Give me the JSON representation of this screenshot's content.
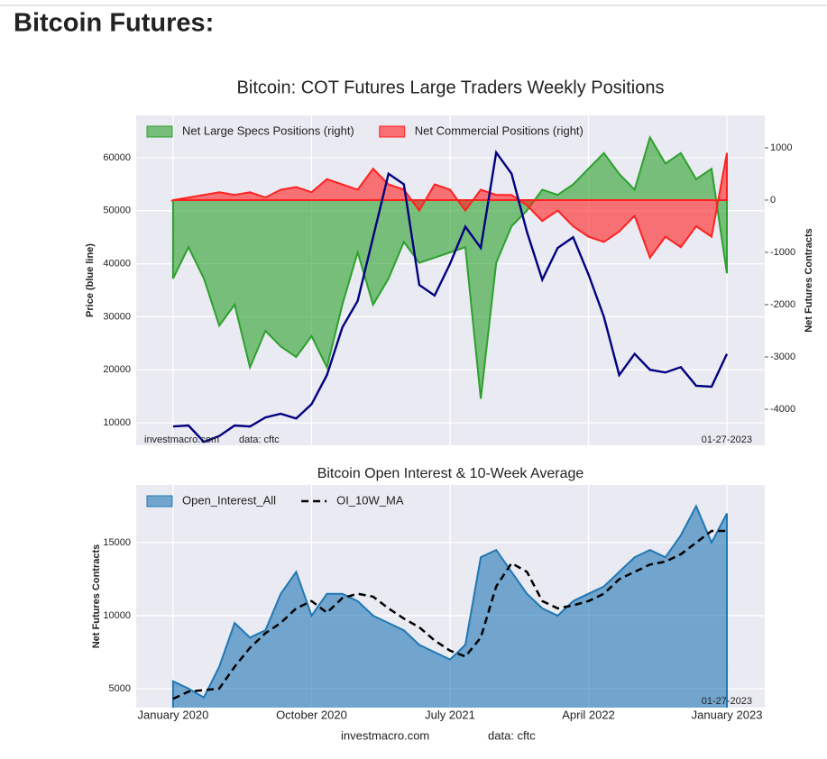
{
  "page_title": "Bitcoin Futures:",
  "chart_data": [
    {
      "type": "line",
      "title": "Bitcoin: COT Futures Large Traders Weekly Positions",
      "ylabel": "Price (blue line)",
      "y2label": "Net Futures Contracts",
      "x": [
        "2020-01",
        "2020-02",
        "2020-03",
        "2020-04",
        "2020-05",
        "2020-06",
        "2020-07",
        "2020-08",
        "2020-09",
        "2020-10",
        "2020-11",
        "2020-12",
        "2021-01",
        "2021-02",
        "2021-03",
        "2021-04",
        "2021-05",
        "2021-06",
        "2021-07",
        "2021-08",
        "2021-09",
        "2021-10",
        "2021-11",
        "2021-12",
        "2022-01",
        "2022-02",
        "2022-03",
        "2022-04",
        "2022-05",
        "2022-06",
        "2022-07",
        "2022-08",
        "2022-09",
        "2022-10",
        "2022-11",
        "2022-12",
        "2023-01"
      ],
      "ylim": [
        5750,
        68000
      ],
      "yticks": [
        10000,
        20000,
        30000,
        40000,
        50000,
        60000
      ],
      "y2lim": [
        -4690,
        1620
      ],
      "y2ticks": [
        1000,
        0,
        -1000,
        -2000,
        -3000,
        -4000
      ],
      "grid": true,
      "legend": "upper left",
      "annotations": [
        "investmacro.com",
        "data: cftc",
        "01-27-2023"
      ],
      "series": [
        {
          "type": "area",
          "name": "Net Large Specs Positions (right)",
          "color": "#2ca02c",
          "axis": "y2",
          "values": [
            -1500,
            -900,
            -1500,
            -2400,
            -2000,
            -3200,
            -2500,
            -2800,
            -3000,
            -2600,
            -3200,
            -2000,
            -1000,
            -2000,
            -1500,
            -800,
            -1200,
            -1100,
            -1000,
            -900,
            -3800,
            -1200,
            -500,
            -200,
            200,
            100,
            300,
            600,
            900,
            500,
            200,
            1200,
            700,
            900,
            400,
            600,
            -1400
          ]
        },
        {
          "type": "area",
          "name": "Net Commercial Positions (right)",
          "color": "#ff2020",
          "axis": "y2",
          "values": [
            0,
            50,
            100,
            150,
            100,
            150,
            50,
            200,
            250,
            150,
            400,
            300,
            200,
            600,
            300,
            200,
            -200,
            300,
            200,
            -200,
            200,
            100,
            100,
            -100,
            -400,
            -200,
            -500,
            -700,
            -800,
            -600,
            -300,
            -1100,
            -700,
            -900,
            -500,
            -700,
            900
          ]
        },
        {
          "type": "line",
          "color": "#000080",
          "values": [
            9300,
            9500,
            6400,
            7500,
            9500,
            9300,
            11000,
            11700,
            10800,
            13500,
            19000,
            28000,
            33000,
            45000,
            57000,
            55000,
            36000,
            34000,
            40000,
            47000,
            43000,
            61000,
            57000,
            46000,
            37000,
            43000,
            45000,
            38000,
            30000,
            19000,
            23000,
            20000,
            19500,
            20500,
            17000,
            16800,
            23000
          ]
        }
      ]
    },
    {
      "type": "area",
      "title": "Bitcoin Open Interest & 10-Week Average",
      "ylabel": "Net Futures Contracts",
      "x": [
        "2020-01",
        "2020-02",
        "2020-03",
        "2020-04",
        "2020-05",
        "2020-06",
        "2020-07",
        "2020-08",
        "2020-09",
        "2020-10",
        "2020-11",
        "2020-12",
        "2021-01",
        "2021-02",
        "2021-03",
        "2021-04",
        "2021-05",
        "2021-06",
        "2021-07",
        "2021-08",
        "2021-09",
        "2021-10",
        "2021-11",
        "2021-12",
        "2022-01",
        "2022-02",
        "2022-03",
        "2022-04",
        "2022-05",
        "2022-06",
        "2022-07",
        "2022-08",
        "2022-09",
        "2022-10",
        "2022-11",
        "2022-12",
        "2023-01"
      ],
      "xticks": [
        {
          "value": "2020-01",
          "label": "January 2020"
        },
        {
          "value": "2020-10",
          "label": "October 2020"
        },
        {
          "value": "2021-07",
          "label": "July 2021"
        },
        {
          "value": "2022-04",
          "label": "April 2022"
        },
        {
          "value": "2023-01",
          "label": "January 2023"
        }
      ],
      "ylim": [
        3700,
        18950
      ],
      "yticks": [
        5000,
        10000,
        15000
      ],
      "grid": true,
      "legend": "upper left",
      "annotations": [
        "01-27-2023",
        "investmacro.com",
        "data: cftc"
      ],
      "series": [
        {
          "type": "area",
          "name": "Open_Interest_All",
          "color": "#1f77b4",
          "values": [
            5500,
            5000,
            4400,
            6500,
            9500,
            8500,
            9000,
            11500,
            13000,
            10000,
            11500,
            11500,
            11000,
            10000,
            9500,
            9000,
            8000,
            7500,
            7000,
            8000,
            14000,
            14500,
            13000,
            11500,
            10500,
            10000,
            11000,
            11500,
            12000,
            13000,
            14000,
            14500,
            14000,
            15500,
            17500,
            15000,
            17000
          ]
        },
        {
          "type": "dashed",
          "name": "OI_10W_MA",
          "color": "#000000",
          "values": [
            4300,
            4800,
            4900,
            5000,
            6500,
            7800,
            8800,
            9500,
            10500,
            11000,
            10200,
            11200,
            11500,
            11300,
            10500,
            9800,
            9200,
            8300,
            7600,
            7200,
            8500,
            12000,
            13600,
            13000,
            11000,
            10500,
            10700,
            11000,
            11500,
            12500,
            13000,
            13500,
            13700,
            14200,
            15000,
            15800,
            15800
          ]
        }
      ]
    }
  ]
}
